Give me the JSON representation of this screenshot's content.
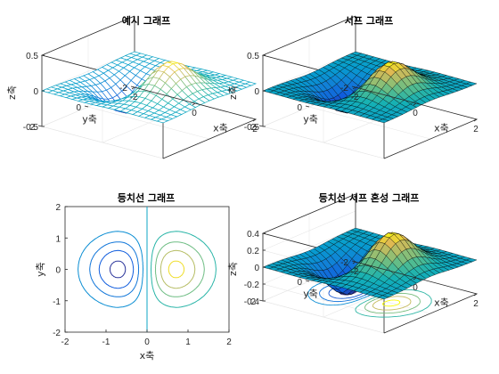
{
  "chart_data": [
    {
      "type": "mesh3d",
      "title": "예시 그래프",
      "function": "z = x*exp(-x^2-y^2)",
      "xlabel": "x축",
      "ylabel": "y축",
      "zlabel": "z축",
      "xlim": [
        -2,
        2
      ],
      "ylim": [
        -2,
        2
      ],
      "zlim": [
        -0.5,
        0.5
      ],
      "xticks": [
        -2,
        0,
        2
      ],
      "yticks": [
        -2,
        0,
        2
      ],
      "zticks": [
        -0.5,
        0,
        0.5
      ],
      "grid_n": 20,
      "colormap": "parula",
      "grid": true
    },
    {
      "type": "surface3d",
      "title": "서프 그래프",
      "function": "z = x*exp(-x^2-y^2)",
      "xlabel": "x축",
      "ylabel": "y축",
      "zlabel": "z축",
      "xlim": [
        -2,
        2
      ],
      "ylim": [
        -2,
        2
      ],
      "zlim": [
        -0.5,
        0.5
      ],
      "xticks": [
        -2,
        0,
        2
      ],
      "yticks": [
        -2,
        0,
        2
      ],
      "zticks": [
        -0.5,
        0,
        0.5
      ],
      "grid_n": 20,
      "colormap": "parula",
      "grid": true
    },
    {
      "type": "contour",
      "title": "등치선 그래프",
      "function": "z = x*exp(-x^2-y^2)",
      "xlabel": "x축",
      "ylabel": "y축",
      "xlim": [
        -2,
        2
      ],
      "ylim": [
        -2,
        2
      ],
      "xticks": [
        -2,
        -1,
        0,
        1,
        2
      ],
      "yticks": [
        -2,
        -1,
        0,
        1,
        2
      ],
      "levels": [
        -0.4,
        -0.3,
        -0.2,
        -0.1,
        0,
        0.1,
        0.2,
        0.3,
        0.4
      ],
      "colormap": "parula",
      "grid": false
    },
    {
      "type": "surfc3d",
      "title": "등치선 서프 혼성 그래프",
      "function": "z = x*exp(-x^2-y^2)",
      "xlabel": "x축",
      "ylabel": "y축",
      "zlabel": "z축",
      "xlim": [
        -2,
        2
      ],
      "ylim": [
        -2,
        2
      ],
      "zlim": [
        -0.4,
        0.4
      ],
      "xticks": [
        -2,
        0,
        2
      ],
      "yticks": [
        -2,
        0,
        2
      ],
      "zticks": [
        -0.4,
        -0.2,
        0,
        0.2,
        0.4
      ],
      "grid_n": 20,
      "colormap": "parula",
      "grid": true
    }
  ]
}
